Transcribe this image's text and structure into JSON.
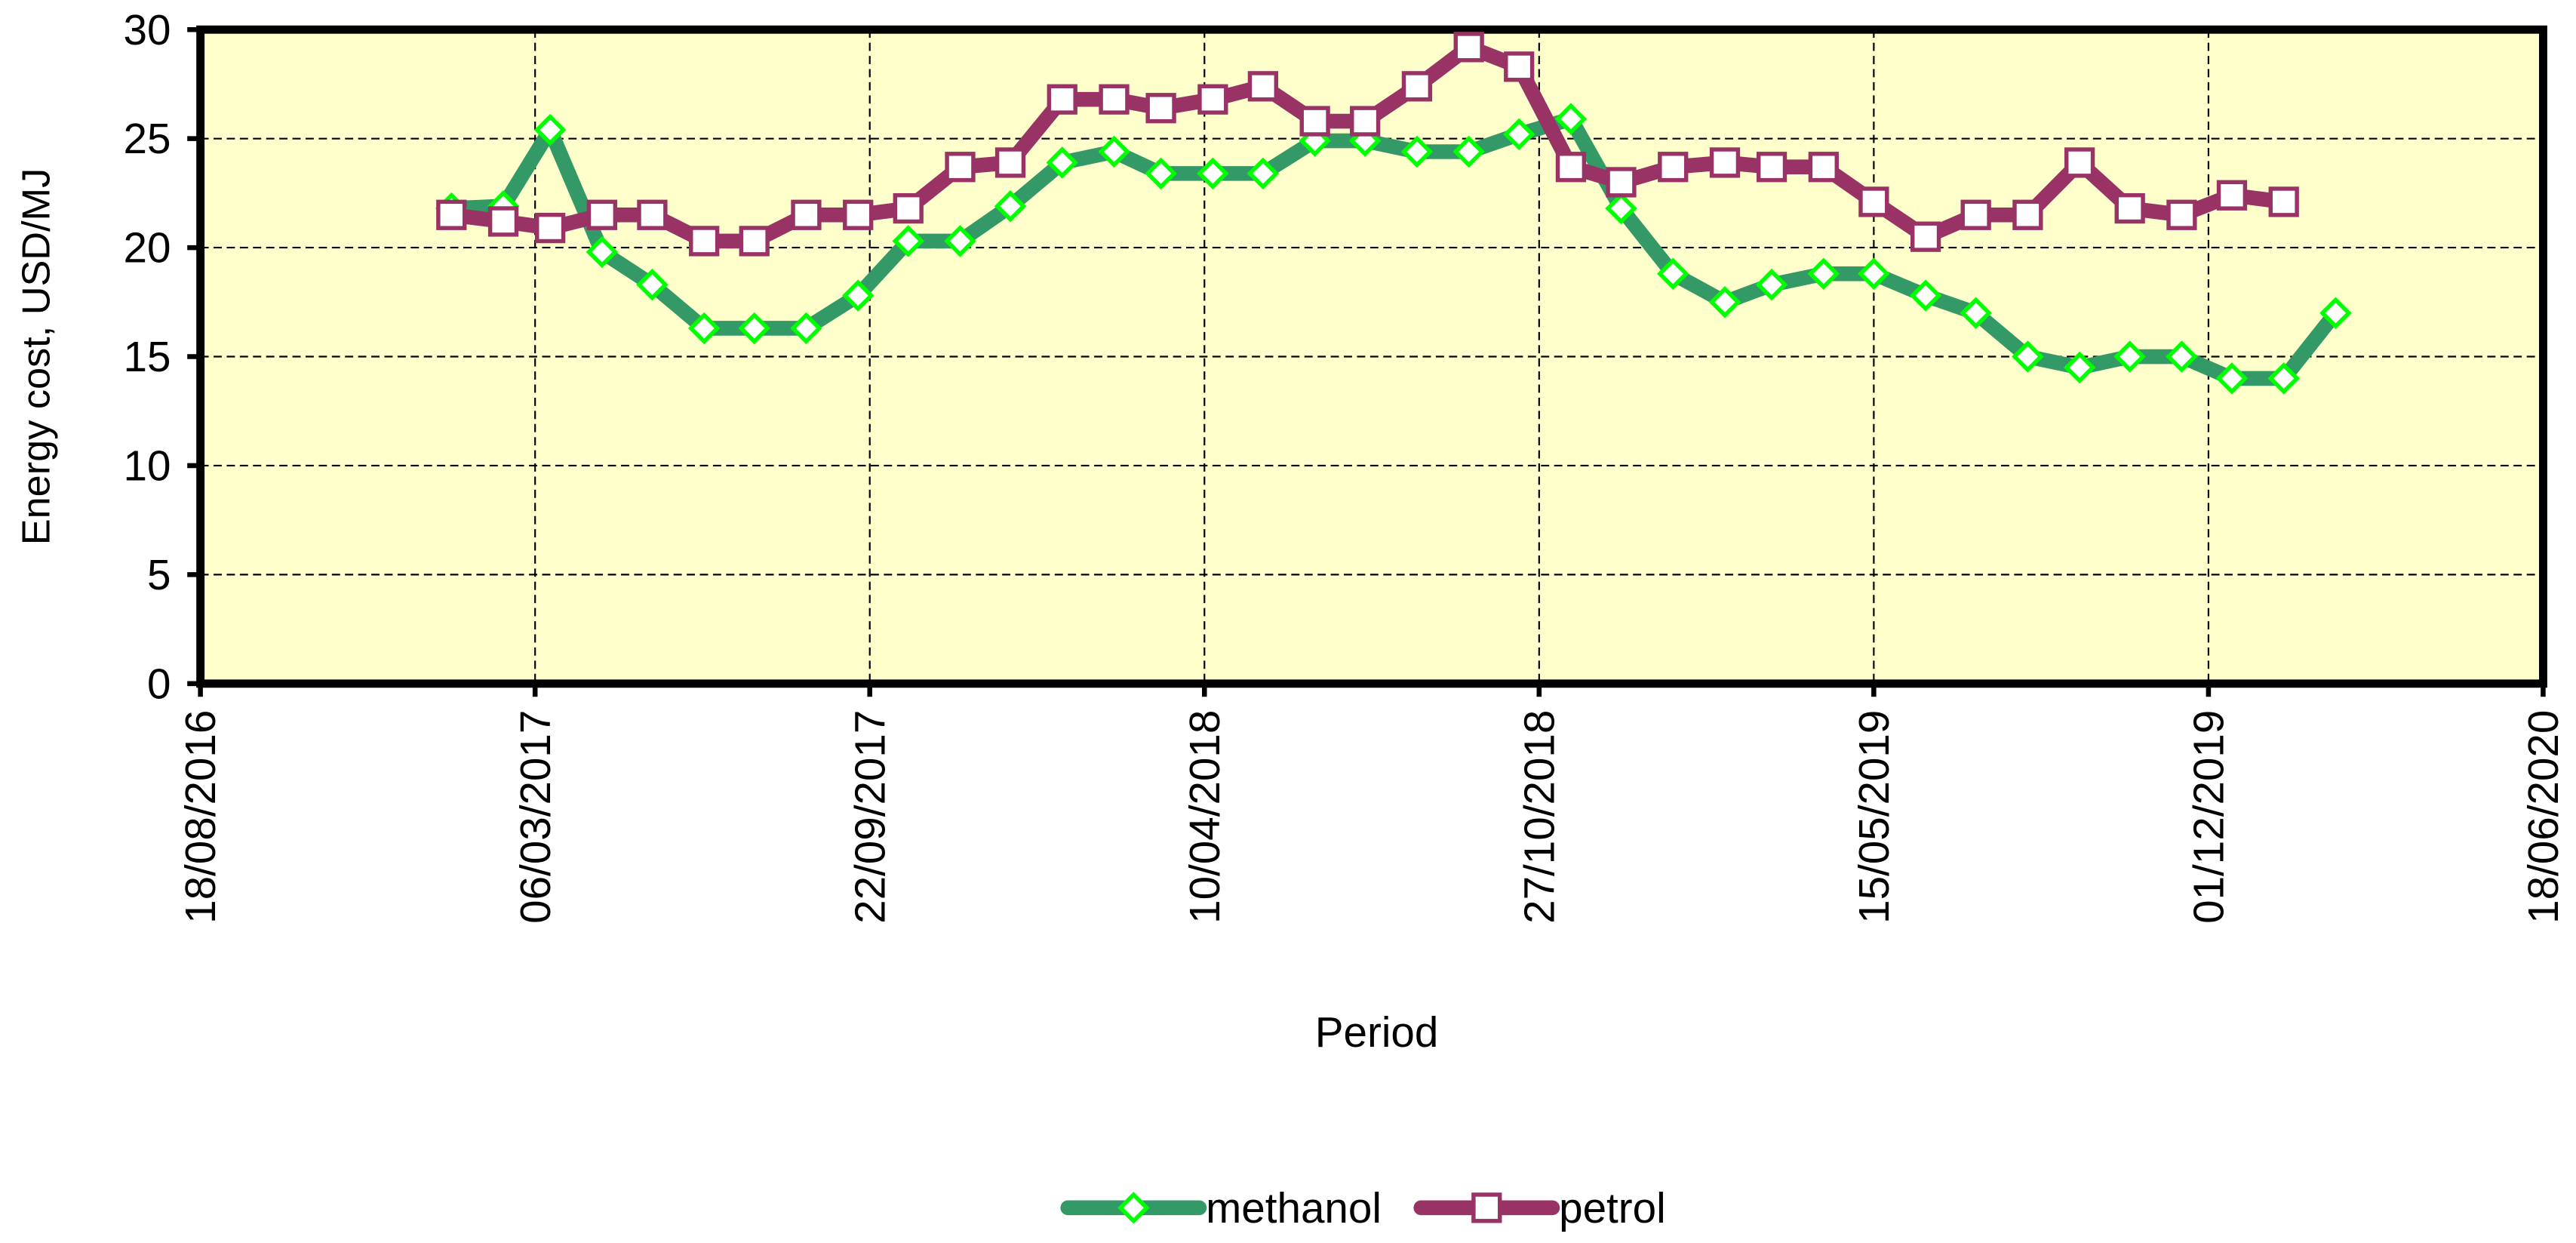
{
  "chart_data": {
    "type": "line",
    "x_label": "Period",
    "y_label": "Energy cost, USD/MJ",
    "x": [
      "15/01/2017",
      "15/02/2017",
      "15/03/2017",
      "15/04/2017",
      "15/05/2017",
      "15/06/2017",
      "15/07/2017",
      "15/08/2017",
      "15/09/2017",
      "15/10/2017",
      "15/11/2017",
      "15/12/2017",
      "15/01/2018",
      "15/02/2018",
      "15/03/2018",
      "15/04/2018",
      "15/05/2018",
      "15/06/2018",
      "15/07/2018",
      "15/08/2018",
      "15/09/2018",
      "15/10/2018",
      "15/11/2018",
      "15/12/2018",
      "15/01/2019",
      "15/02/2019",
      "15/03/2019",
      "15/04/2019",
      "15/05/2019",
      "15/06/2019",
      "15/07/2019",
      "15/08/2019",
      "15/09/2019",
      "15/10/2019",
      "15/11/2019",
      "15/12/2019",
      "15/01/2020",
      "15/02/2020"
    ],
    "series": [
      {
        "name": "methanol",
        "color": "#339966",
        "marker_color": "#00ff00",
        "marker": "diamond",
        "values": [
          21.8,
          21.9,
          25.4,
          19.8,
          18.3,
          16.3,
          16.3,
          16.3,
          17.8,
          20.3,
          20.3,
          21.9,
          23.9,
          24.4,
          23.4,
          23.4,
          23.4,
          24.9,
          24.9,
          24.4,
          24.4,
          25.2,
          25.9,
          21.8,
          18.8,
          17.5,
          18.3,
          18.8,
          18.8,
          17.8,
          17.0,
          15.0,
          14.5,
          15.0,
          15.0,
          14.0,
          14.0,
          17.0
        ]
      },
      {
        "name": "petrol",
        "color": "#993366",
        "marker_color": "#993366",
        "marker": "square",
        "values": [
          21.5,
          21.2,
          20.9,
          21.5,
          21.5,
          20.3,
          20.3,
          21.5,
          21.5,
          21.8,
          23.7,
          23.9,
          26.8,
          26.8,
          26.4,
          26.8,
          27.4,
          25.8,
          25.8,
          27.4,
          29.2,
          28.3,
          23.7,
          23.0,
          23.7,
          23.9,
          23.7,
          23.7,
          22.1,
          20.5,
          21.5,
          21.5,
          23.9,
          21.8,
          21.5,
          22.4,
          22.1,
          null
        ]
      }
    ],
    "xlim": [
      "18/08/2016",
      "18/06/2020"
    ],
    "xticks": [
      "18/08/2016",
      "06/03/2017",
      "22/09/2017",
      "10/04/2018",
      "27/10/2018",
      "15/05/2019",
      "01/12/2019",
      "18/06/2020"
    ],
    "ylim": [
      0,
      30
    ],
    "yticks": [
      0,
      5,
      10,
      15,
      20,
      25,
      30
    ],
    "grid": true,
    "plot_background": "#ffffcc",
    "legend_position": "bottom"
  }
}
